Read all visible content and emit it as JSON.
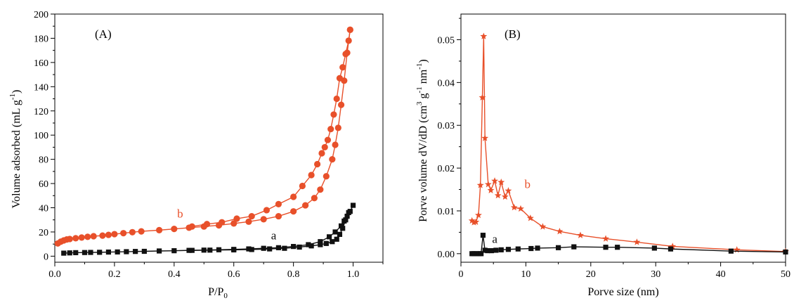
{
  "chart_data": [
    {
      "type": "scatter",
      "panel_label": "(A)",
      "xlabel": "P/P",
      "xlabel_sub": "0",
      "ylabel": "Volume adsorbed (mL g",
      "ylabel_sup": "-1",
      "ylabel_end": ")",
      "xlim": [
        0.0,
        1.1
      ],
      "ylim": [
        -5,
        200
      ],
      "xticks": [
        0.0,
        0.2,
        0.4,
        0.6,
        0.8,
        1.0
      ],
      "xtick_labels": [
        "0.0",
        "0.2",
        "0.4",
        "0.6",
        "0.8",
        "1.0"
      ],
      "yticks": [
        0,
        20,
        40,
        60,
        80,
        100,
        120,
        140,
        160,
        180,
        200
      ],
      "ytick_labels": [
        "0",
        "20",
        "40",
        "60",
        "80",
        "100",
        "120",
        "140",
        "160",
        "180",
        "200"
      ],
      "grid": false,
      "series": [
        {
          "name": "b",
          "color": "#e8502a",
          "marker": "circle",
          "label_at": [
            0.41,
            32
          ],
          "branches": [
            {
              "x": [
                0.01,
                0.02,
                0.03,
                0.04,
                0.05,
                0.07,
                0.09,
                0.11,
                0.13,
                0.16,
                0.18,
                0.2,
                0.23,
                0.26,
                0.29,
                0.35,
                0.4,
                0.45,
                0.5,
                0.55,
                0.6,
                0.65,
                0.7,
                0.75,
                0.8,
                0.84,
                0.87,
                0.89,
                0.91,
                0.93,
                0.94,
                0.95,
                0.96,
                0.97,
                0.98,
                0.99
              ],
              "y": [
                10.5,
                12,
                13,
                13.8,
                14.2,
                14.8,
                15.4,
                16,
                16.5,
                17,
                17.6,
                18.2,
                19,
                19.8,
                20.5,
                21.5,
                22.5,
                23.5,
                24.5,
                25.5,
                27,
                28.5,
                30.5,
                33,
                37,
                42,
                48,
                55,
                66,
                80,
                92,
                106,
                125,
                145,
                168,
                187
              ]
            },
            {
              "x": [
                0.99,
                0.985,
                0.975,
                0.965,
                0.955,
                0.945,
                0.935,
                0.925,
                0.915,
                0.905,
                0.895,
                0.88,
                0.86,
                0.83,
                0.8,
                0.75,
                0.71,
                0.66,
                0.61,
                0.56,
                0.51,
                0.46
              ],
              "y": [
                187,
                178,
                167,
                156,
                147,
                130,
                117,
                105,
                96,
                90,
                85,
                76,
                67,
                58,
                49,
                43,
                38,
                33,
                31,
                28,
                26.5,
                24.5
              ]
            }
          ]
        },
        {
          "name": "a",
          "color": "#111111",
          "marker": "square",
          "label_at": [
            0.725,
            14
          ],
          "branches": [
            {
              "x": [
                0.03,
                0.05,
                0.07,
                0.1,
                0.12,
                0.15,
                0.18,
                0.21,
                0.24,
                0.27,
                0.3,
                0.35,
                0.4,
                0.45,
                0.5,
                0.55,
                0.6,
                0.65,
                0.7,
                0.75,
                0.8,
                0.85,
                0.89,
                0.92,
                0.94,
                0.96,
                0.97,
                0.98,
                0.99,
                1.0
              ],
              "y": [
                2.5,
                2.7,
                2.9,
                3.0,
                3.1,
                3.2,
                3.4,
                3.5,
                3.7,
                3.9,
                4.0,
                4.3,
                4.5,
                4.8,
                5.0,
                5.3,
                5.6,
                6.0,
                6.5,
                7.0,
                8.0,
                9.5,
                12,
                16,
                20,
                25,
                29,
                33,
                37,
                42
              ]
            },
            {
              "x": [
                0.985,
                0.975,
                0.965,
                0.955,
                0.945,
                0.93,
                0.91,
                0.89,
                0.86,
                0.82,
                0.77,
                0.72,
                0.66,
                0.6,
                0.52,
                0.46
              ],
              "y": [
                36,
                30,
                23,
                18,
                14,
                12,
                10.5,
                9.5,
                8.5,
                7.5,
                6.5,
                6,
                5.5,
                5.2,
                5.0,
                4.8
              ]
            }
          ]
        }
      ]
    },
    {
      "type": "line",
      "panel_label": "(B)",
      "xlabel": "Porve size (nm)",
      "ylabel": "Porve volume dV/dD (cm",
      "ylabel_sup1": "3",
      "ylabel_mid": " g",
      "ylabel_sup2": "-1",
      "ylabel_mid2": " nm",
      "ylabel_sup3": "-1",
      "ylabel_end": ")",
      "xlim": [
        0,
        50
      ],
      "ylim": [
        -0.002,
        0.056
      ],
      "xticks": [
        0,
        10,
        20,
        30,
        40,
        50
      ],
      "xtick_labels": [
        "0",
        "10",
        "20",
        "30",
        "40",
        "50"
      ],
      "yticks": [
        0.0,
        0.01,
        0.02,
        0.03,
        0.04,
        0.05
      ],
      "ytick_labels": [
        "0.00",
        "0.01",
        "0.02",
        "0.03",
        "0.04",
        "0.05"
      ],
      "grid": false,
      "series": [
        {
          "name": "b",
          "color": "#e8502a",
          "marker": "star",
          "label_at": [
            9.8,
            0.0153
          ],
          "x": [
            1.7,
            2.0,
            2.3,
            2.7,
            3.0,
            3.3,
            3.5,
            3.7,
            4.2,
            4.6,
            5.2,
            5.7,
            6.2,
            6.8,
            7.3,
            8.2,
            9.2,
            10.7,
            12.6,
            15.2,
            18.4,
            22.3,
            27.1,
            32.6,
            42.5,
            50
          ],
          "y": [
            0.0077,
            0.0073,
            0.0074,
            0.009,
            0.016,
            0.0365,
            0.0508,
            0.027,
            0.0162,
            0.0148,
            0.017,
            0.0136,
            0.0167,
            0.0133,
            0.0147,
            0.0108,
            0.0105,
            0.0083,
            0.0063,
            0.0052,
            0.0043,
            0.0035,
            0.0027,
            0.0017,
            0.0009,
            0.0005
          ]
        },
        {
          "name": "a",
          "color": "#111111",
          "marker": "square",
          "label_at": [
            4.8,
            0.0025
          ],
          "x": [
            1.7,
            2.0,
            2.4,
            2.8,
            3.1,
            3.4,
            3.7,
            4.1,
            4.7,
            5.4,
            6.2,
            7.3,
            8.8,
            10.8,
            11.8,
            15.0,
            17.4,
            22.3,
            24.1,
            29.8,
            32.3,
            41.6,
            50
          ],
          "y": [
            0.0,
            0.0,
            0.0,
            0.0,
            0.0,
            0.0043,
            0.0008,
            0.0007,
            0.0007,
            0.0008,
            0.0009,
            0.001,
            0.0011,
            0.0012,
            0.0013,
            0.0014,
            0.0016,
            0.0015,
            0.0015,
            0.0013,
            0.0011,
            0.0006,
            0.0004
          ]
        }
      ]
    }
  ]
}
